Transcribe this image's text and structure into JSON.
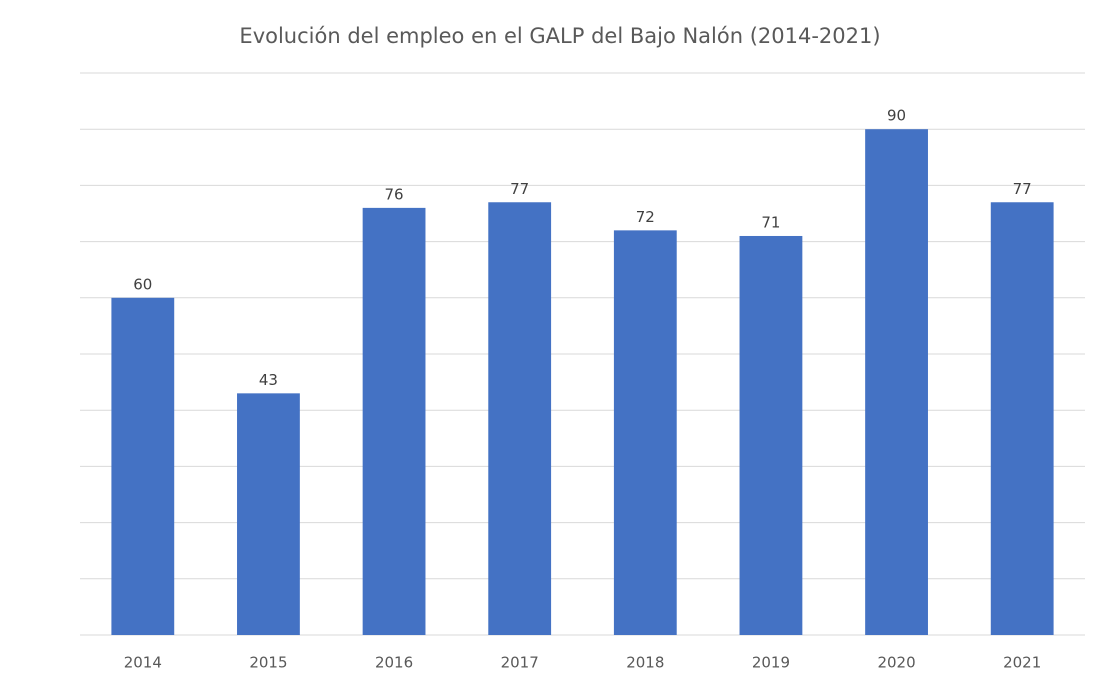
{
  "chart_data": {
    "type": "bar",
    "title": "Evolución del empleo en el GALP del Bajo Nalón (2014-2021)",
    "categories": [
      "2014",
      "2015",
      "2016",
      "2017",
      "2018",
      "2019",
      "2020",
      "2021"
    ],
    "values": [
      60,
      43,
      76,
      77,
      72,
      71,
      90,
      77
    ],
    "color": "#4472c4",
    "ylim": [
      0,
      100
    ],
    "yticks": [
      0,
      10,
      20,
      30,
      40,
      50,
      60,
      70,
      80,
      90,
      100
    ],
    "grid": true
  }
}
